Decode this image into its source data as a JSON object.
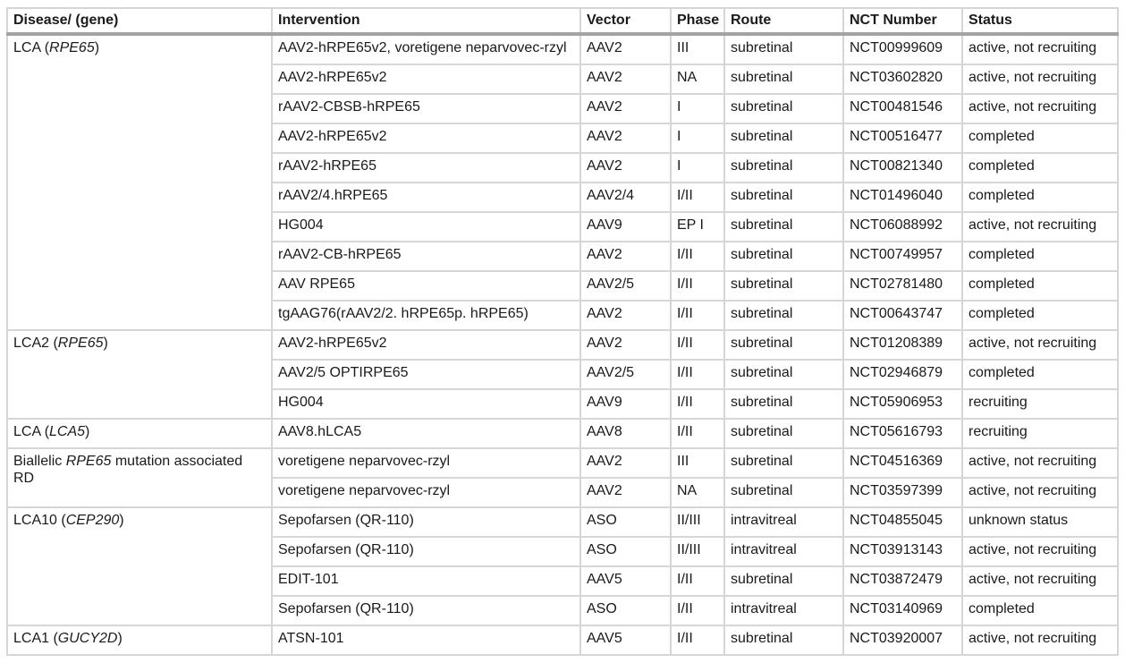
{
  "headers": [
    "Disease/ (gene)",
    "Intervention",
    "Vector",
    "Phase",
    "Route",
    "NCT Number",
    "Status"
  ],
  "groups": [
    {
      "disease": {
        "pre": "LCA (",
        "gene": "RPE65",
        "post": ")"
      },
      "rows": [
        [
          "AAV2-hRPE65v2, voretigene neparvovec-rzyl",
          "AAV2",
          "III",
          "subretinal",
          "NCT00999609",
          "active, not recruiting"
        ],
        [
          "AAV2-hRPE65v2",
          "AAV2",
          "NA",
          "subretinal",
          "NCT03602820",
          "active, not recruiting"
        ],
        [
          "rAAV2-CBSB-hRPE65",
          "AAV2",
          "I",
          "subretinal",
          "NCT00481546",
          "active, not recruiting"
        ],
        [
          "AAV2-hRPE65v2",
          "AAV2",
          "I",
          "subretinal",
          "NCT00516477",
          "completed"
        ],
        [
          "rAAV2-hRPE65",
          "AAV2",
          "I",
          "subretinal",
          "NCT00821340",
          "completed"
        ],
        [
          "rAAV2/4.hRPE65",
          "AAV2/4",
          "I/II",
          "subretinal",
          "NCT01496040",
          "completed"
        ],
        [
          "HG004",
          "AAV9",
          "EP I",
          "subretinal",
          "NCT06088992",
          "active, not recruiting"
        ],
        [
          "rAAV2-CB-hRPE65",
          "AAV2",
          "I/II",
          "subretinal",
          "NCT00749957",
          "completed"
        ],
        [
          "AAV RPE65",
          "AAV2/5",
          "I/II",
          "subretinal",
          "NCT02781480",
          "completed"
        ],
        [
          "tgAAG76(rAAV2/2. hRPE65p. hRPE65)",
          "AAV2",
          "I/II",
          "subretinal",
          "NCT00643747",
          "completed"
        ]
      ]
    },
    {
      "disease": {
        "pre": "LCA2 (",
        "gene": "RPE65",
        "post": ")"
      },
      "rows": [
        [
          "AAV2-hRPE65v2",
          "AAV2",
          "I/II",
          "subretinal",
          "NCT01208389",
          "active, not recruiting"
        ],
        [
          "AAV2/5 OPTIRPE65",
          "AAV2/5",
          "I/II",
          "subretinal",
          "NCT02946879",
          "completed"
        ],
        [
          "HG004",
          "AAV9",
          "I/II",
          "subretinal",
          "NCT05906953",
          "recruiting"
        ]
      ]
    },
    {
      "disease": {
        "pre": "LCA (",
        "gene": "LCA5",
        "post": ")"
      },
      "rows": [
        [
          "AAV8.hLCA5",
          "AAV8",
          "I/II",
          "subretinal",
          "NCT05616793",
          "recruiting"
        ]
      ]
    },
    {
      "disease": {
        "pre": "Biallelic ",
        "gene": "RPE65",
        "post": " mutation associated RD"
      },
      "rows": [
        [
          "voretigene neparvovec-rzyl",
          "AAV2",
          "III",
          "subretinal",
          "NCT04516369",
          "active, not recruiting"
        ],
        [
          "voretigene neparvovec-rzyl",
          "AAV2",
          "NA",
          "subretinal",
          "NCT03597399",
          "active, not recruiting"
        ]
      ]
    },
    {
      "disease": {
        "pre": "LCA10 (",
        "gene": "CEP290",
        "post": ")"
      },
      "rows": [
        [
          "Sepofarsen (QR-110)",
          "ASO",
          "II/III",
          "intravitreal",
          "NCT04855045",
          "unknown status"
        ],
        [
          "Sepofarsen (QR-110)",
          "ASO",
          "II/III",
          "intravitreal",
          "NCT03913143",
          "active, not recruiting"
        ],
        [
          "EDIT-101",
          "AAV5",
          "I/II",
          "subretinal",
          "NCT03872479",
          "active, not recruiting"
        ],
        [
          "Sepofarsen (QR-110)",
          "ASO",
          "I/II",
          "intravitreal",
          "NCT03140969",
          "completed"
        ]
      ]
    },
    {
      "disease": {
        "pre": "LCA1 (",
        "gene": "GUCY2D",
        "post": ")"
      },
      "rows": [
        [
          "ATSN-101",
          "AAV5",
          "I/II",
          "subretinal",
          "NCT03920007",
          "active, not recruiting"
        ]
      ]
    }
  ]
}
